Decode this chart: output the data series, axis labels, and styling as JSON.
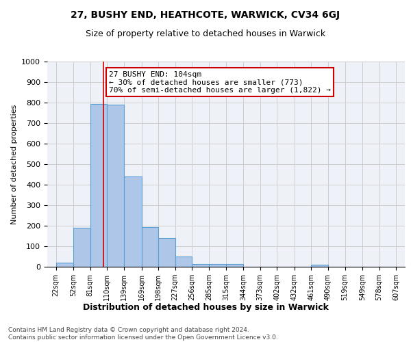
{
  "title1": "27, BUSHY END, HEATHCOTE, WARWICK, CV34 6GJ",
  "title2": "Size of property relative to detached houses in Warwick",
  "xlabel": "Distribution of detached houses by size in Warwick",
  "ylabel": "Number of detached properties",
  "bar_left_edges": [
    22,
    52,
    81,
    110,
    139,
    169,
    198,
    227,
    256,
    285,
    315,
    344,
    373,
    402,
    432,
    461,
    490,
    519,
    549,
    578
  ],
  "bar_widths": [
    30,
    29,
    29,
    29,
    30,
    29,
    29,
    29,
    29,
    30,
    29,
    29,
    29,
    30,
    29,
    29,
    29,
    30,
    29,
    29
  ],
  "bar_heights": [
    20,
    190,
    795,
    790,
    440,
    195,
    140,
    50,
    15,
    13,
    13,
    0,
    0,
    0,
    0,
    10,
    0,
    0,
    0,
    0
  ],
  "bar_color": "#aec6e8",
  "bar_edge_color": "#5a9fd4",
  "tick_labels": [
    "22sqm",
    "52sqm",
    "81sqm",
    "110sqm",
    "139sqm",
    "169sqm",
    "198sqm",
    "227sqm",
    "256sqm",
    "285sqm",
    "315sqm",
    "344sqm",
    "373sqm",
    "402sqm",
    "432sqm",
    "461sqm",
    "490sqm",
    "519sqm",
    "549sqm",
    "578sqm",
    "607sqm"
  ],
  "tick_positions": [
    22,
    52,
    81,
    110,
    139,
    169,
    198,
    227,
    256,
    285,
    315,
    344,
    373,
    402,
    432,
    461,
    490,
    519,
    549,
    578,
    607
  ],
  "vline_x": 104,
  "vline_color": "#cc0000",
  "annotation_text": "27 BUSHY END: 104sqm\n← 30% of detached houses are smaller (773)\n70% of semi-detached houses are larger (1,822) →",
  "annotation_box_color": "#cc0000",
  "ylim": [
    0,
    1000
  ],
  "yticks": [
    0,
    100,
    200,
    300,
    400,
    500,
    600,
    700,
    800,
    900,
    1000
  ],
  "grid_color": "#cccccc",
  "bg_color": "#eef2f8",
  "footer_text": "Contains HM Land Registry data © Crown copyright and database right 2024.\nContains public sector information licensed under the Open Government Licence v3.0.",
  "title1_fontsize": 10,
  "title2_fontsize": 9,
  "xlabel_fontsize": 9,
  "ylabel_fontsize": 8,
  "tick_fontsize": 7,
  "annotation_fontsize": 8,
  "footer_fontsize": 6.5
}
